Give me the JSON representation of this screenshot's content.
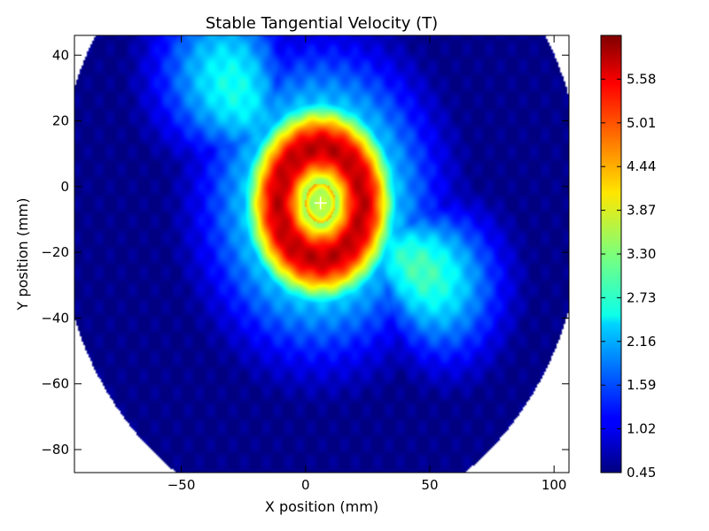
{
  "chart_data": {
    "type": "heatmap",
    "title": "Stable Tangential Velocity (T)",
    "xlabel": "X position (mm)",
    "ylabel": "Y position (mm)",
    "xlim": [
      -93,
      106
    ],
    "ylim": [
      -87,
      46
    ],
    "x_ticks": [
      {
        "value": -50,
        "label": "−50"
      },
      {
        "value": 0,
        "label": "0"
      },
      {
        "value": 50,
        "label": "50"
      },
      {
        "value": 100,
        "label": "100"
      }
    ],
    "y_ticks": [
      {
        "value": 40,
        "label": "40"
      },
      {
        "value": 20,
        "label": "20"
      },
      {
        "value": 0,
        "label": "0"
      },
      {
        "value": -20,
        "label": "−20"
      },
      {
        "value": -40,
        "label": "−40"
      },
      {
        "value": -60,
        "label": "−60"
      },
      {
        "value": -80,
        "label": "−80"
      }
    ],
    "colorbar": {
      "colormap": "jet",
      "min": 0.45,
      "max": 6.15,
      "ticks": [
        {
          "value": 0.45,
          "label": "0.45"
        },
        {
          "value": 1.02,
          "label": "1.02"
        },
        {
          "value": 1.59,
          "label": "1.59"
        },
        {
          "value": 2.16,
          "label": "2.16"
        },
        {
          "value": 2.73,
          "label": "2.73"
        },
        {
          "value": 3.3,
          "label": "3.30"
        },
        {
          "value": 3.87,
          "label": "3.87"
        },
        {
          "value": 4.44,
          "label": "4.44"
        },
        {
          "value": 5.01,
          "label": "5.01"
        },
        {
          "value": 5.58,
          "label": "5.58"
        }
      ]
    },
    "grid": false,
    "center_marker": {
      "x": 6,
      "y": -5,
      "symbol": "+"
    },
    "field_description": "vortex ring of peak ~6 centred near (6,-5) with low-velocity core; swirling arms; low outer region"
  },
  "colors": {
    "background": "#ffffff",
    "axis": "#000000"
  }
}
